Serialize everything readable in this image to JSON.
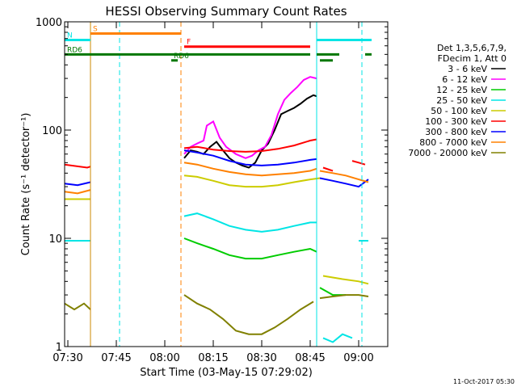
{
  "chart_data": {
    "type": "line",
    "title": "HESSI Observing Summary Count Rates",
    "xlabel": "Start Time (03-May-15 07:29:02)",
    "ylabel": "Count Rate (s⁻¹ detector⁻¹)",
    "y_scale": "log",
    "ylim": [
      1,
      1000
    ],
    "xlim": [
      "07:29",
      "09:09"
    ],
    "x_ticks": [
      "07:30",
      "07:45",
      "08:00",
      "08:15",
      "08:30",
      "08:45",
      "09:00"
    ],
    "y_ticks": [
      "1",
      "10",
      "100",
      "1000"
    ],
    "footer": "11-Oct-2017 05:30",
    "legend": {
      "header": [
        "Det 1,3,5,6,7,9,",
        "FDecim 1, Att 0"
      ],
      "position": "right"
    },
    "series": [
      {
        "name": "3 - 6 keV",
        "color": "#000000",
        "segments": [
          {
            "x": [
              "08:06",
              "08:08",
              "08:10",
              "08:12",
              "08:14",
              "08:16",
              "08:18",
              "08:20",
              "08:22",
              "08:24",
              "08:26",
              "08:28",
              "08:30",
              "08:32",
              "08:34",
              "08:36",
              "08:38",
              "08:40",
              "08:42",
              "08:44",
              "08:46",
              "08:47"
            ],
            "y": [
              55,
              65,
              63,
              60,
              70,
              78,
              65,
              55,
              50,
              47,
              45,
              50,
              65,
              75,
              100,
              140,
              150,
              160,
              175,
              195,
              210,
              205
            ]
          }
        ]
      },
      {
        "name": "6 - 12 keV",
        "color": "#ff00ff",
        "segments": [
          {
            "x": [
              "08:06",
              "08:08",
              "08:10",
              "08:12",
              "08:13",
              "08:15",
              "08:17",
              "08:19",
              "08:22",
              "08:25",
              "08:27",
              "08:29",
              "08:31",
              "08:33",
              "08:35",
              "08:37",
              "08:39",
              "08:41",
              "08:43",
              "08:45",
              "08:47"
            ],
            "y": [
              60,
              70,
              75,
              80,
              110,
              120,
              85,
              70,
              60,
              55,
              58,
              65,
              70,
              90,
              140,
              190,
              220,
              250,
              290,
              310,
              300
            ]
          }
        ]
      },
      {
        "name": "12 - 25 keV",
        "color": "#00cc00",
        "segments": [
          {
            "x": [
              "08:06",
              "08:10",
              "08:15",
              "08:20",
              "08:25",
              "08:30",
              "08:35",
              "08:40",
              "08:45",
              "08:47"
            ],
            "y": [
              10,
              9,
              8,
              7,
              6.5,
              6.5,
              7,
              7.5,
              8,
              7.5
            ]
          },
          {
            "x": [
              "08:48",
              "08:52",
              "08:56"
            ],
            "y": [
              3.5,
              3,
              3
            ]
          }
        ]
      },
      {
        "name": "25 - 50 keV",
        "color": "#00e5e5",
        "segments": [
          {
            "x": [
              "07:29",
              "07:37"
            ],
            "y": [
              9.5,
              9.5
            ]
          },
          {
            "x": [
              "08:06",
              "08:10",
              "08:15",
              "08:20",
              "08:25",
              "08:30",
              "08:35",
              "08:40",
              "08:45",
              "08:47"
            ],
            "y": [
              16,
              17,
              15,
              13,
              12,
              11.5,
              12,
              13,
              14,
              14
            ]
          },
          {
            "x": [
              "08:49",
              "08:52",
              "08:55",
              "08:58"
            ],
            "y": [
              1.2,
              1.1,
              1.3,
              1.2
            ]
          },
          {
            "x": [
              "09:00",
              "09:03"
            ],
            "y": [
              9.5,
              9.5
            ]
          }
        ]
      },
      {
        "name": "50 - 100 keV",
        "color": "#cccc00",
        "segments": [
          {
            "x": [
              "07:29",
              "07:37"
            ],
            "y": [
              23,
              23
            ]
          },
          {
            "x": [
              "08:06",
              "08:10",
              "08:15",
              "08:20",
              "08:25",
              "08:30",
              "08:35",
              "08:40",
              "08:45",
              "08:48"
            ],
            "y": [
              38,
              37,
              34,
              31,
              30,
              30,
              31,
              33,
              35,
              36
            ]
          },
          {
            "x": [
              "08:49",
              "08:55",
              "09:00",
              "09:03"
            ],
            "y": [
              4.5,
              4.2,
              4,
              3.8
            ]
          }
        ]
      },
      {
        "name": "100 - 300 keV",
        "color": "#ff0000",
        "segments": [
          {
            "x": [
              "07:29",
              "07:36",
              "07:37"
            ],
            "y": [
              48,
              45,
              46
            ]
          },
          {
            "x": [
              "08:06",
              "08:10",
              "08:15",
              "08:20",
              "08:25",
              "08:30",
              "08:35",
              "08:40",
              "08:45",
              "08:47"
            ],
            "y": [
              68,
              70,
              66,
              64,
              63,
              64,
              67,
              72,
              80,
              82
            ]
          },
          {
            "x": [
              "08:49",
              "08:52"
            ],
            "y": [
              45,
              42
            ]
          },
          {
            "x": [
              "08:58",
              "09:00",
              "09:02"
            ],
            "y": [
              52,
              50,
              48
            ]
          }
        ]
      },
      {
        "name": "300 - 800 keV",
        "color": "#0000ff",
        "segments": [
          {
            "x": [
              "07:29",
              "07:33",
              "07:37"
            ],
            "y": [
              32,
              31,
              33
            ]
          },
          {
            "x": [
              "08:06",
              "08:10",
              "08:15",
              "08:20",
              "08:25",
              "08:30",
              "08:35",
              "08:40",
              "08:45",
              "08:47"
            ],
            "y": [
              65,
              62,
              58,
              52,
              48,
              47,
              48,
              50,
              53,
              54
            ]
          },
          {
            "x": [
              "08:48",
              "08:52",
              "08:56",
              "09:00",
              "09:03"
            ],
            "y": [
              36,
              34,
              32,
              30,
              35
            ]
          }
        ]
      },
      {
        "name": "800 - 7000 keV",
        "color": "#ff8000",
        "segments": [
          {
            "x": [
              "07:29",
              "07:33",
              "07:37"
            ],
            "y": [
              27,
              26,
              28
            ]
          },
          {
            "x": [
              "08:06",
              "08:10",
              "08:15",
              "08:20",
              "08:25",
              "08:30",
              "08:35",
              "08:40",
              "08:45",
              "08:47"
            ],
            "y": [
              50,
              48,
              44,
              41,
              39,
              38,
              39,
              40,
              42,
              44
            ]
          },
          {
            "x": [
              "08:48",
              "08:52",
              "08:56",
              "09:00",
              "09:03"
            ],
            "y": [
              42,
              40,
              38,
              35,
              33
            ]
          }
        ]
      },
      {
        "name": "7000 - 20000 keV",
        "color": "#808000",
        "segments": [
          {
            "x": [
              "07:29",
              "07:32",
              "07:35",
              "07:37"
            ],
            "y": [
              2.5,
              2.2,
              2.5,
              2.2
            ]
          },
          {
            "x": [
              "08:06",
              "08:10",
              "08:14",
              "08:18",
              "08:22",
              "08:26",
              "08:30",
              "08:34",
              "08:38",
              "08:42",
              "08:46"
            ],
            "y": [
              3,
              2.5,
              2.2,
              1.8,
              1.4,
              1.3,
              1.3,
              1.5,
              1.8,
              2.2,
              2.6
            ]
          },
          {
            "x": [
              "08:48",
              "08:52",
              "08:56",
              "09:00",
              "09:03"
            ],
            "y": [
              2.8,
              2.9,
              3,
              3,
              2.9
            ]
          }
        ]
      }
    ],
    "vertical_markers": [
      {
        "x": "07:37",
        "color": "#cc8800",
        "style": "solid"
      },
      {
        "x": "07:46",
        "color": "#00e5e5",
        "style": "dashed"
      },
      {
        "x": "08:05",
        "color": "#ff8000",
        "style": "dashed"
      },
      {
        "x": "08:47",
        "color": "#00e5e5",
        "style": "solid"
      },
      {
        "x": "09:01",
        "color": "#00e5e5",
        "style": "dashed"
      }
    ],
    "flag_bars": [
      {
        "label": "S",
        "color": "#ff8000",
        "segments": [
          [
            "07:37",
            "08:05"
          ]
        ],
        "level": 780
      },
      {
        "label": "N",
        "color": "#00e5e5",
        "segments": [
          [
            "07:29",
            "07:37"
          ],
          [
            "08:47",
            "09:04"
          ]
        ],
        "level": 680
      },
      {
        "label": "F",
        "color": "#ff0000",
        "segments": [
          [
            "08:06",
            "08:45"
          ]
        ],
        "level": 590
      },
      {
        "label": "RD6",
        "color": "#007700",
        "segments": [
          [
            "07:29",
            "08:45"
          ],
          [
            "08:47",
            "08:54"
          ],
          [
            "09:02",
            "09:04"
          ]
        ],
        "level": 500
      },
      {
        "label": "RD6",
        "color": "#007700",
        "segments": [
          [
            "08:02",
            "08:04"
          ],
          [
            "08:48",
            "08:52"
          ]
        ],
        "level": 440
      }
    ]
  }
}
